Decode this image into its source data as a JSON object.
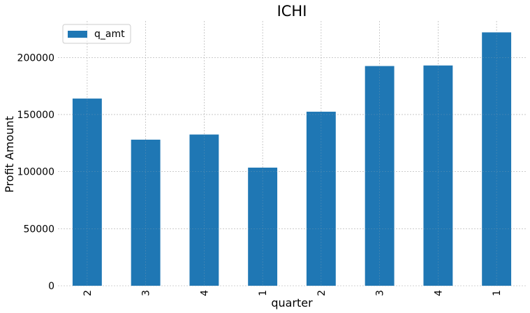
{
  "chart_data": {
    "type": "bar",
    "title": "ICHI",
    "xlabel": "quarter",
    "ylabel": "Profit Amount",
    "categories": [
      "2",
      "3",
      "4",
      "1",
      "2",
      "3",
      "4",
      "1"
    ],
    "series": [
      {
        "name": "q_amt",
        "values": [
          164000,
          128000,
          132500,
          103500,
          152500,
          192500,
          193000,
          222000
        ],
        "color": "#1f77b4"
      }
    ],
    "ylim": [
      0,
      232000
    ],
    "yticks": [
      0,
      50000,
      100000,
      150000,
      200000
    ],
    "grid": true,
    "legend_position": "top-left"
  }
}
